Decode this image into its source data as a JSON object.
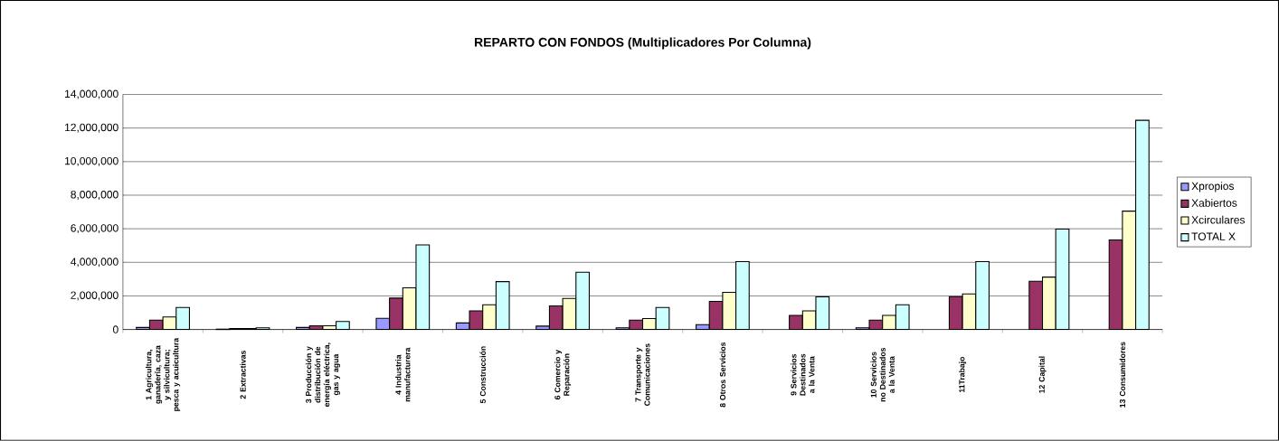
{
  "chart_data": {
    "type": "bar",
    "title": "REPARTO CON FONDOS (Multiplicadores Por Columna)",
    "categories": [
      "1 Agricultura, ganadería, caza y silvicultura; pesca y acuicultura",
      "2 Extractivas",
      "3 Producción y distribución de energía eléctrica, gas y agua",
      "4 Industria manufacturera",
      "5 Construcción",
      "6 Comercio y Reparación",
      "7 Transporte y Comunicaciones",
      "8 Otros Servicios",
      "9 Servicios Destinados a la Venta",
      "10 Servicios no Destinados a la Venta",
      "11Trabajo",
      "12 Capital",
      "13 Consumidores"
    ],
    "series": [
      {
        "name": "Xpropios",
        "color": "#9999ff",
        "values": [
          120000,
          20000,
          120000,
          660000,
          390000,
          200000,
          100000,
          290000,
          null,
          100000,
          null,
          null,
          null
        ]
      },
      {
        "name": "Xabiertos",
        "color": "#993366",
        "values": [
          560000,
          60000,
          220000,
          1870000,
          1110000,
          1400000,
          560000,
          1670000,
          840000,
          560000,
          1960000,
          2870000,
          5330000
        ]
      },
      {
        "name": "Xcirculares",
        "color": "#ffffcc",
        "values": [
          750000,
          60000,
          220000,
          2480000,
          1470000,
          1850000,
          650000,
          2210000,
          1110000,
          840000,
          2120000,
          3120000,
          7050000
        ]
      },
      {
        "name": "TOTAL X",
        "color": "#ccffff",
        "values": [
          1310000,
          100000,
          480000,
          5040000,
          2850000,
          3410000,
          1310000,
          4040000,
          1940000,
          1470000,
          4040000,
          5980000,
          12460000
        ]
      }
    ],
    "ylim": [
      0,
      14000000
    ],
    "yticks": [
      0,
      {
        "value": 2000000,
        "label": "2,000,000"
      },
      {
        "value": 4000000,
        "label": "4,000,000"
      },
      {
        "value": 6000000,
        "label": "6,000,000"
      },
      {
        "value": 8000000,
        "label": "8,000,000"
      },
      {
        "value": 10000000,
        "label": "10,000,000"
      },
      {
        "value": 12000000,
        "label": "12,000,000"
      },
      {
        "value": 14000000,
        "label": "14,000,000"
      }
    ],
    "grid": "y",
    "legend": "right"
  }
}
